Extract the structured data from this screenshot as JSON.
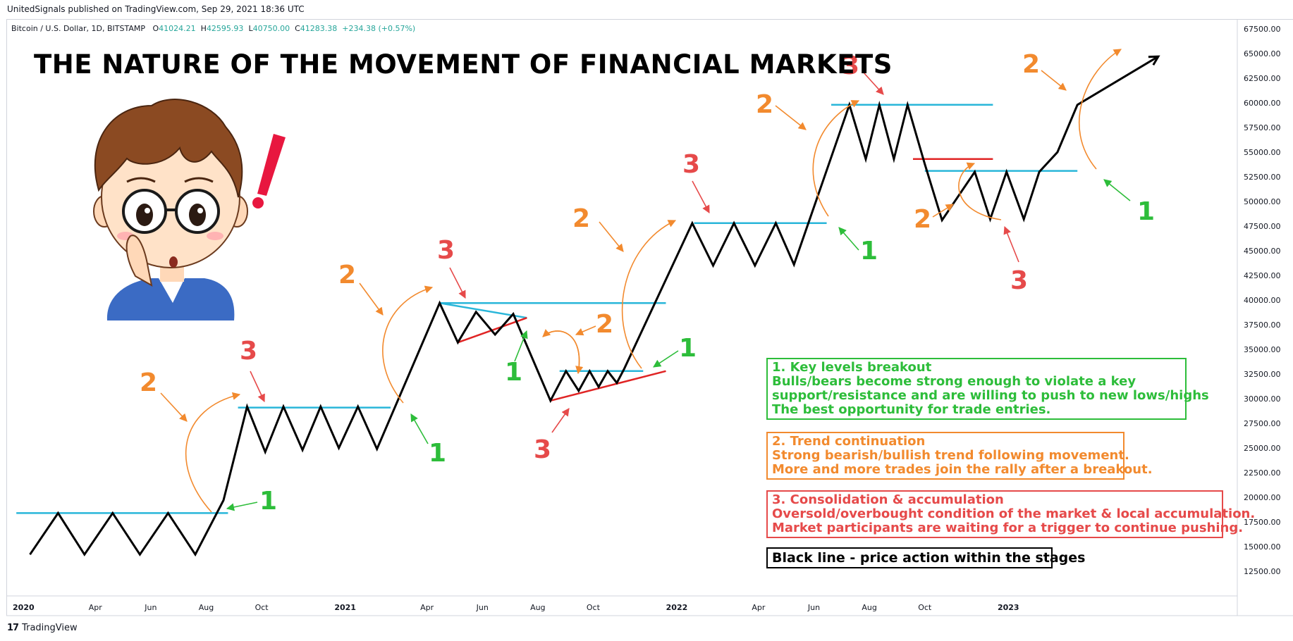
{
  "publisher_line": "UnitedSignals published on TradingView.com, Sep 29, 2021 18:36 UTC",
  "symbol": {
    "name": "Bitcoin / U.S. Dollar, 1D, BITSTAMP",
    "o_label": "O",
    "o_value": "41024.21",
    "h_label": "H",
    "h_value": "42595.93",
    "l_label": "L",
    "l_value": "40750.00",
    "c_label": "C",
    "c_value": "41283.38",
    "change": "+234.38 (+0.57%)"
  },
  "title": "THE NATURE OF THE MOVEMENT OF FINANCIAL MARKETS",
  "legend": {
    "breakout": {
      "heading": "1. Key levels breakout",
      "lines": [
        "Bulls/bears become strong enough to violate a key",
        "support/resistance and are willing to push to new lows/highs",
        "The best opportunity for trade entries."
      ]
    },
    "trend": {
      "heading": "2. Trend continuation",
      "lines": [
        "Strong bearish/bullish trend following movement.",
        "More and more trades join the rally after a breakout."
      ]
    },
    "consolidation": {
      "heading": "3. Consolidation & accumulation",
      "lines": [
        "Oversold/overbought condition of the market & local accumulation.",
        "Market participants are waiting for a trigger to continue pushing."
      ]
    },
    "black_line": "Black line - price action within the stages"
  },
  "footer": {
    "logo": "17",
    "brand": "TradingView"
  },
  "colors": {
    "price_line": "#000000",
    "resistance": "#29b6d9",
    "support": "#e02424",
    "stage1": "#2dbd3a",
    "stage2": "#f28a2e",
    "stage3": "#e64a4a",
    "exclamation": "#e8173f"
  },
  "chart_data": {
    "type": "line",
    "x_axis": {
      "type": "date",
      "tick_labels": [
        "2020",
        "Apr",
        "Jun",
        "Aug",
        "Oct",
        "2021",
        "Apr",
        "Jun",
        "Aug",
        "Oct",
        "2022",
        "Apr",
        "Jun",
        "Aug",
        "Oct",
        "2023"
      ],
      "range": [
        "2019-12-25",
        "2023-09-10"
      ]
    },
    "y_axis": {
      "range": [
        10000,
        68500
      ],
      "tick_labels": [
        "67500.00",
        "65000.00",
        "62500.00",
        "60000.00",
        "57500.00",
        "55000.00",
        "52500.00",
        "50000.00",
        "47500.00",
        "45000.00",
        "42500.00",
        "40000.00",
        "37500.00",
        "35000.00",
        "32500.00",
        "30000.00",
        "27500.00",
        "25000.00",
        "22500.00",
        "20000.00",
        "17500.00",
        "15000.00",
        "12500.00"
      ]
    },
    "series": [
      {
        "x": [
          "2020-01-20",
          "2020-02-20",
          "2020-03-20",
          "2020-04-20",
          "2020-05-20",
          "2020-06-20",
          "2020-07-20",
          "2020-08-20",
          "2020-09-15",
          "2020-10-05",
          "2020-10-25",
          "2020-11-15",
          "2020-12-05",
          "2020-12-25",
          "2021-01-15",
          "2021-02-05",
          "2021-04-15",
          "2021-05-05",
          "2021-05-25",
          "2021-06-15",
          "2021-07-05",
          "2021-08-15",
          "2021-09-01",
          "2021-09-15",
          "2021-09-27",
          "2021-10-07",
          "2021-10-17",
          "2021-10-27",
          "2021-11-04",
          "2022-01-18",
          "2022-02-10",
          "2022-03-05",
          "2022-03-28",
          "2022-04-20",
          "2022-05-10",
          "2022-07-10",
          "2022-07-28",
          "2022-08-12",
          "2022-08-28",
          "2022-09-12",
          "2022-10-01",
          "2022-10-20",
          "2022-11-25",
          "2022-12-12",
          "2022-12-30",
          "2023-01-18",
          "2023-02-04",
          "2023-02-24",
          "2023-03-18",
          "2023-06-15"
        ],
        "y": [
          14200,
          18400,
          14200,
          18400,
          14200,
          18400,
          14200,
          19700,
          29200,
          24600,
          29200,
          24800,
          29200,
          25000,
          29200,
          24900,
          39700,
          35700,
          38800,
          36500,
          38600,
          29800,
          32800,
          30800,
          32800,
          31200,
          32800,
          31600,
          33000,
          47800,
          43500,
          47800,
          43500,
          47800,
          43600,
          59800,
          54300,
          59800,
          54300,
          59800,
          53800,
          48100,
          53000,
          48200,
          53000,
          48200,
          53000,
          55000,
          59800,
          64700
        ]
      }
    ],
    "levels": [
      {
        "x": [
          "2020-01-05",
          "2020-08-25"
        ],
        "y": 18400,
        "color": "cyan"
      },
      {
        "x": [
          "2020-09-05",
          "2021-02-20"
        ],
        "y": 29100,
        "color": "cyan"
      },
      {
        "x": [
          "2021-04-15",
          "2021-12-20"
        ],
        "y": 39700,
        "color": "cyan"
      },
      {
        "x": [
          "2021-08-25",
          "2021-11-25"
        ],
        "y": 32800,
        "color": "cyan"
      },
      {
        "x": [
          "2022-01-20",
          "2022-06-15"
        ],
        "y": 47800,
        "color": "cyan"
      },
      {
        "x": [
          "2022-06-20",
          "2022-12-15"
        ],
        "y": 59800,
        "color": "cyan"
      },
      {
        "x": [
          "2022-09-18",
          "2022-12-15"
        ],
        "y": 54300,
        "color": "red"
      },
      {
        "x": [
          "2022-10-01",
          "2023-03-18"
        ],
        "y": 53100,
        "color": "cyan"
      }
    ],
    "trendlines": [
      {
        "x": [
          "2021-04-15",
          "2021-07-20"
        ],
        "y": [
          39700,
          38200
        ],
        "color": "cyan"
      },
      {
        "x": [
          "2021-05-05",
          "2021-07-20"
        ],
        "y": [
          35700,
          38200
        ],
        "color": "red"
      },
      {
        "x": [
          "2021-08-15",
          "2021-12-20"
        ],
        "y": [
          29800,
          32800
        ],
        "color": "red"
      }
    ],
    "annotations": [
      {
        "label": "1",
        "stage": 1
      },
      {
        "label": "2",
        "stage": 2
      },
      {
        "label": "3",
        "stage": 3
      }
    ]
  }
}
